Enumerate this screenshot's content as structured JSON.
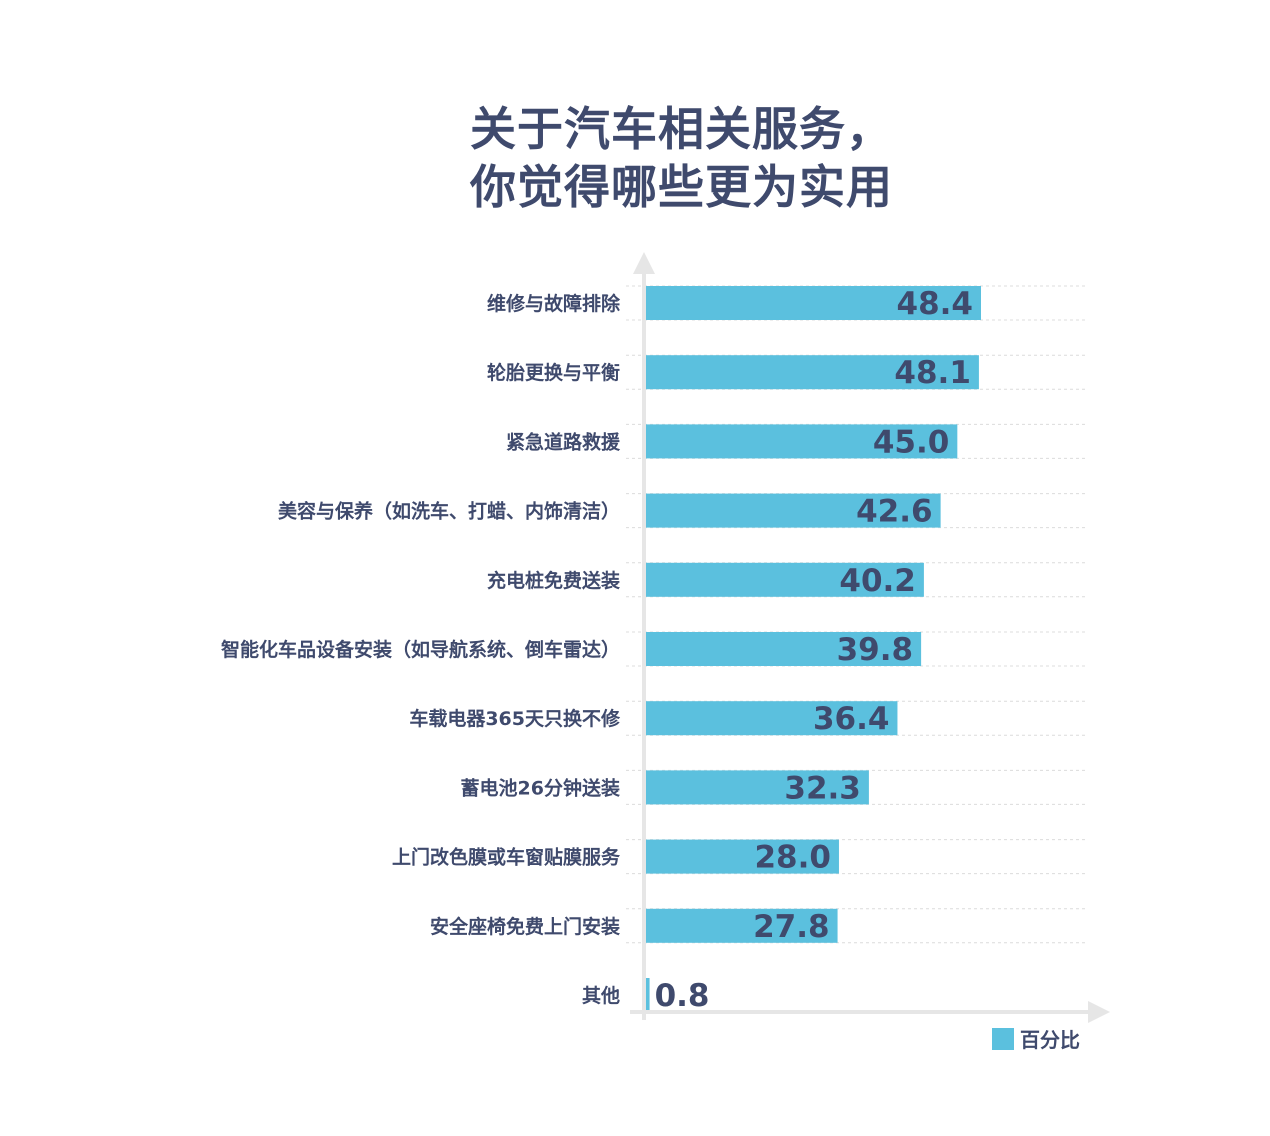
{
  "chart_data": {
    "type": "bar",
    "orientation": "horizontal",
    "title_lines": [
      "关于汽车相关服务，",
      "你觉得哪些更为实用"
    ],
    "categories": [
      "维修与故障排除",
      "轮胎更换与平衡",
      "紧急道路救援",
      "美容与保养（如洗车、打蜡、内饰清洁）",
      "充电桩免费送装",
      "智能化车品设备安装（如导航系统、倒车雷达）",
      "车载电器365天只换不修",
      "蓄电池26分钟送装",
      "上门改色膜或车窗贴膜服务",
      "安全座椅免费上门安装",
      "其他"
    ],
    "series": [
      {
        "name": "百分比",
        "values": [
          48.4,
          48.1,
          45.0,
          42.6,
          40.2,
          39.8,
          36.4,
          32.3,
          28.0,
          27.8,
          0.8
        ],
        "value_labels": [
          "48.4",
          "48.1",
          "45.0",
          "42.6",
          "40.2",
          "39.8",
          "36.4",
          "32.3",
          "28.0",
          "27.8",
          "0.8"
        ]
      }
    ],
    "xlim": [
      0,
      63
    ],
    "grid": "dashed horizontal",
    "legend": "bottom-right",
    "colors": {
      "bar": "#5bc0de",
      "text": "#3f4a6d",
      "axis": "#e6e6e6",
      "grid": "#dcdcdc"
    }
  }
}
